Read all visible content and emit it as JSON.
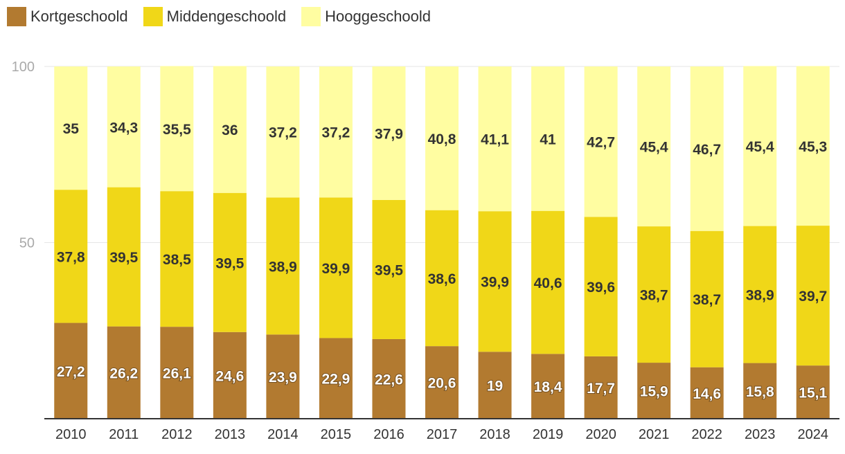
{
  "chart_data": {
    "type": "bar",
    "stacked": true,
    "categories": [
      "2010",
      "2011",
      "2012",
      "2013",
      "2014",
      "2015",
      "2016",
      "2017",
      "2018",
      "2019",
      "2020",
      "2021",
      "2022",
      "2023",
      "2024"
    ],
    "series": [
      {
        "name": "Kortgeschoold",
        "color": "#B27A30",
        "values": [
          27.2,
          26.2,
          26.1,
          24.6,
          23.9,
          22.9,
          22.6,
          20.6,
          19,
          18.4,
          17.7,
          15.9,
          14.6,
          15.8,
          15.1
        ],
        "labels": [
          "27,2",
          "26,2",
          "26,1",
          "24,6",
          "23,9",
          "22,9",
          "22,6",
          "20,6",
          "19",
          "18,4",
          "17,7",
          "15,9",
          "14,6",
          "15,8",
          "15,1"
        ]
      },
      {
        "name": "Middengeschoold",
        "color": "#F0D718",
        "values": [
          37.8,
          39.5,
          38.5,
          39.5,
          38.9,
          39.9,
          39.5,
          38.6,
          39.9,
          40.6,
          39.6,
          38.7,
          38.7,
          38.9,
          39.7
        ],
        "labels": [
          "37,8",
          "39,5",
          "38,5",
          "39,5",
          "38,9",
          "39,9",
          "39,5",
          "38,6",
          "39,9",
          "40,6",
          "39,6",
          "38,7",
          "38,7",
          "38,9",
          "39,7"
        ]
      },
      {
        "name": "Hooggeschoold",
        "color": "#FFFDA1",
        "values": [
          35,
          34.3,
          35.5,
          36,
          37.2,
          37.2,
          37.9,
          40.8,
          41.1,
          41,
          42.7,
          45.4,
          46.7,
          45.4,
          45.3
        ],
        "labels": [
          "35",
          "34,3",
          "35,5",
          "36",
          "37,2",
          "37,2",
          "37,9",
          "40,8",
          "41,1",
          "41",
          "42,7",
          "45,4",
          "46,7",
          "45,4",
          "45,3"
        ]
      }
    ],
    "yticks": [
      {
        "value": 50,
        "label": "50"
      },
      {
        "value": 100,
        "label": "100"
      }
    ],
    "ylim": [
      0,
      100
    ],
    "legend": "top-left",
    "grid": true
  }
}
